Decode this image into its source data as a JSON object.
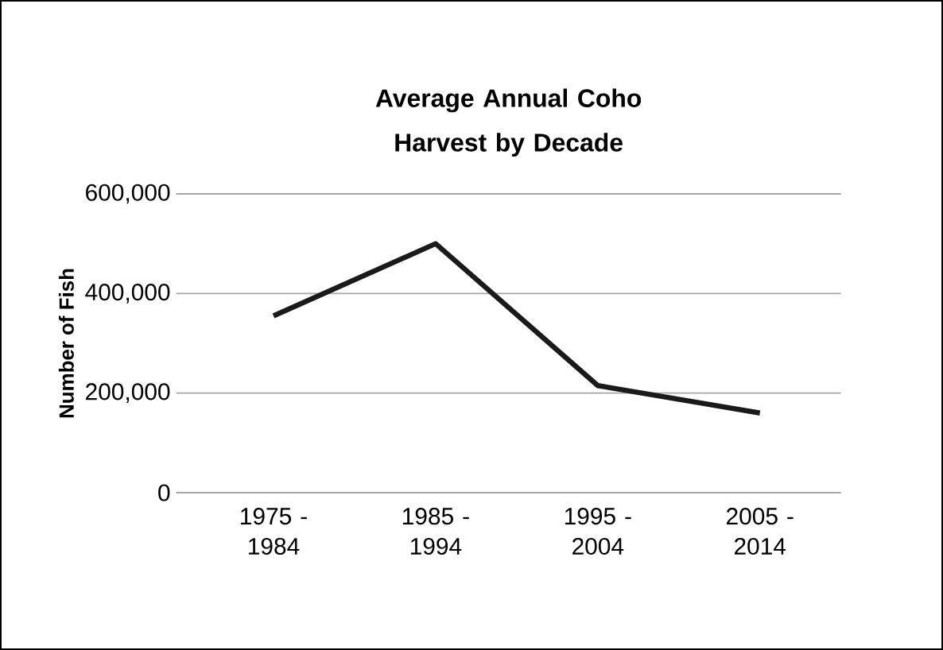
{
  "chart_data": {
    "type": "line",
    "title": "Average Annual Coho Harvest by Decade",
    "ylabel": "Number of Fish",
    "categories": [
      "1975 - 1984",
      "1985 - 1994",
      "1995 - 2004",
      "2005 - 2014"
    ],
    "series": [
      {
        "color": "#1a1a1a",
        "values": [
          355000,
          500000,
          215000,
          160000
        ]
      }
    ],
    "ylim": [
      0,
      600000
    ],
    "yticks": [
      {
        "value": 0,
        "label": "0"
      },
      {
        "value": 200000,
        "label": "200,000"
      },
      {
        "value": 400000,
        "label": "400,000"
      },
      {
        "value": 600000,
        "label": "600,000"
      }
    ],
    "grid": "y",
    "marker": "none",
    "line_style": "solid"
  }
}
